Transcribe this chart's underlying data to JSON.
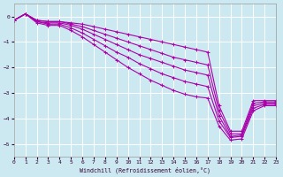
{
  "xlabel": "Windchill (Refroidissement éolien,°C)",
  "ylabel": "",
  "xlim": [
    0,
    23
  ],
  "ylim": [
    -5.5,
    0.5
  ],
  "yticks": [
    0,
    -1,
    -2,
    -3,
    -4,
    -5
  ],
  "xticks": [
    0,
    1,
    2,
    3,
    4,
    5,
    6,
    7,
    8,
    9,
    10,
    11,
    12,
    13,
    14,
    15,
    16,
    17,
    18,
    19,
    20,
    21,
    22,
    23
  ],
  "bg_color": "#cce8f0",
  "line_color": "#aa00aa",
  "grid_color": "#ffffff",
  "lines": [
    {
      "x": [
        0,
        1,
        2,
        3,
        4,
        5,
        6,
        7,
        8,
        9,
        10,
        11,
        12,
        13,
        14,
        15,
        16,
        17,
        18,
        19,
        20,
        21,
        22,
        23
      ],
      "y": [
        -0.15,
        0.1,
        -0.15,
        -0.2,
        -0.2,
        -0.25,
        -0.3,
        -0.4,
        -0.5,
        -0.6,
        -0.7,
        -0.8,
        -0.9,
        -1.0,
        -1.1,
        -1.2,
        -1.3,
        -1.4,
        -3.5,
        -4.5,
        -4.5,
        -3.3,
        -3.3,
        -3.3
      ]
    },
    {
      "x": [
        0,
        1,
        2,
        3,
        4,
        5,
        6,
        7,
        8,
        9,
        10,
        11,
        12,
        13,
        14,
        15,
        16,
        17,
        18,
        19,
        20,
        21,
        22,
        23
      ],
      "y": [
        -0.15,
        0.1,
        -0.15,
        -0.2,
        -0.2,
        -0.3,
        -0.4,
        -0.55,
        -0.7,
        -0.85,
        -1.0,
        -1.15,
        -1.3,
        -1.45,
        -1.6,
        -1.7,
        -1.8,
        -1.9,
        -3.7,
        -4.6,
        -4.6,
        -3.4,
        -3.35,
        -3.35
      ]
    },
    {
      "x": [
        0,
        1,
        2,
        3,
        4,
        5,
        6,
        7,
        8,
        9,
        10,
        11,
        12,
        13,
        14,
        15,
        16,
        17,
        18,
        19,
        20,
        21,
        22,
        23
      ],
      "y": [
        -0.15,
        0.1,
        -0.2,
        -0.25,
        -0.25,
        -0.35,
        -0.5,
        -0.7,
        -0.9,
        -1.1,
        -1.3,
        -1.5,
        -1.65,
        -1.8,
        -1.95,
        -2.1,
        -2.2,
        -2.3,
        -3.9,
        -4.7,
        -4.65,
        -3.5,
        -3.4,
        -3.4
      ]
    },
    {
      "x": [
        0,
        1,
        2,
        3,
        4,
        5,
        6,
        7,
        8,
        9,
        10,
        11,
        12,
        13,
        14,
        15,
        16,
        17,
        18,
        19,
        20,
        21,
        22,
        23
      ],
      "y": [
        -0.15,
        0.1,
        -0.2,
        -0.3,
        -0.3,
        -0.45,
        -0.65,
        -0.9,
        -1.15,
        -1.4,
        -1.6,
        -1.85,
        -2.05,
        -2.25,
        -2.4,
        -2.55,
        -2.65,
        -2.75,
        -4.1,
        -4.75,
        -4.7,
        -3.6,
        -3.45,
        -3.45
      ]
    },
    {
      "x": [
        0,
        1,
        2,
        3,
        4,
        5,
        6,
        7,
        8,
        9,
        10,
        11,
        12,
        13,
        14,
        15,
        16,
        17,
        18,
        19,
        20,
        21,
        22,
        23
      ],
      "y": [
        -0.15,
        0.1,
        -0.25,
        -0.35,
        -0.35,
        -0.55,
        -0.8,
        -1.1,
        -1.4,
        -1.7,
        -2.0,
        -2.25,
        -2.5,
        -2.7,
        -2.9,
        -3.05,
        -3.15,
        -3.2,
        -4.3,
        -4.85,
        -4.8,
        -3.7,
        -3.5,
        -3.5
      ]
    }
  ]
}
